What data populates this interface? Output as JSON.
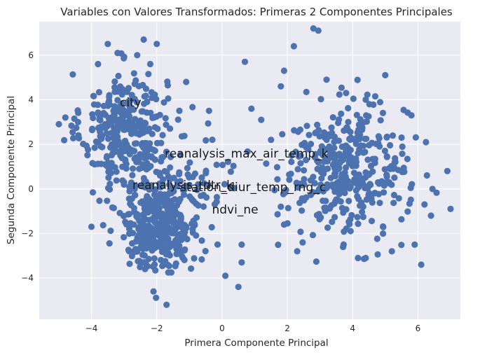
{
  "chart_data": {
    "type": "scatter",
    "title": "Variables con Valores Transformados: Primeras 2 Componentes Principales",
    "xlabel": "Primera Componente Principal",
    "ylabel": "Segunda Componente Principal",
    "xlim": [
      -5.6,
      7.3
    ],
    "ylim": [
      -5.85,
      7.5
    ],
    "xticks": [
      -4,
      -2,
      0,
      2,
      4,
      6
    ],
    "yticks": [
      -4,
      -2,
      0,
      2,
      4,
      6
    ],
    "grid": true,
    "point_color": "#4c72b0",
    "background_color": "#eaeaf2",
    "clusters": [
      {
        "center": [
          -3.0,
          2.7
        ],
        "spread": [
          0.65,
          1.25
        ],
        "count": 300
      },
      {
        "center": [
          -1.9,
          -1.6
        ],
        "spread": [
          0.6,
          1.0
        ],
        "count": 380
      },
      {
        "center": [
          -1.2,
          0.8
        ],
        "spread": [
          0.9,
          1.2
        ],
        "count": 90
      },
      {
        "center": [
          3.8,
          0.8
        ],
        "spread": [
          0.95,
          1.45
        ],
        "count": 380
      }
    ],
    "outlier_points": [
      [
        -3.5,
        6.5
      ],
      [
        -2.4,
        6.7
      ],
      [
        -2.0,
        6.5
      ],
      [
        -3.2,
        6.1
      ],
      [
        -2.6,
        6.0
      ],
      [
        -3.8,
        5.6
      ],
      [
        -2.2,
        5.6
      ],
      [
        -5.0,
        2.9
      ],
      [
        -4.8,
        3.2
      ],
      [
        -4.4,
        2.4
      ],
      [
        -3.9,
        1.1
      ],
      [
        -4.0,
        -1.7
      ],
      [
        -1.1,
        4.8
      ],
      [
        -0.4,
        3.5
      ],
      [
        -1.2,
        -3.1
      ],
      [
        -1.7,
        -5.2
      ],
      [
        -2.1,
        -4.6
      ],
      [
        0.5,
        -4.4
      ],
      [
        0.6,
        -3.3
      ],
      [
        0.6,
        -2.5
      ],
      [
        0.1,
        -3.9
      ],
      [
        0.7,
        5.7
      ],
      [
        0.9,
        3.6
      ],
      [
        1.2,
        3.1
      ],
      [
        1.5,
        2.2
      ],
      [
        2.2,
        6.4
      ],
      [
        2.8,
        7.2
      ],
      [
        2.95,
        7.1
      ],
      [
        3.2,
        4.9
      ],
      [
        1.9,
        5.3
      ],
      [
        1.8,
        4.6
      ],
      [
        5.0,
        5.1
      ],
      [
        5.8,
        3.3
      ],
      [
        6.1,
        -3.4
      ],
      [
        6.9,
        0.8
      ],
      [
        7.0,
        -0.9
      ],
      [
        5.9,
        -2.5
      ],
      [
        4.4,
        -3.1
      ],
      [
        5.2,
        -2.8
      ],
      [
        6.2,
        -0.7
      ],
      [
        6.4,
        -1.2
      ],
      [
        1.9,
        -1.6
      ],
      [
        2.3,
        -2.8
      ],
      [
        1.8,
        -0.8
      ],
      [
        3.8,
        4.3
      ],
      [
        4.4,
        4.0
      ],
      [
        5.5,
        2.3
      ]
    ],
    "annotations": [
      {
        "text": "city",
        "x": -2.8,
        "y": 3.7
      },
      {
        "text": "reanalysis_max_air_temp_k",
        "x": 0.75,
        "y": 1.4
      },
      {
        "text": "reanalysis_tdtr_k",
        "x": -1.2,
        "y": 0.0
      },
      {
        "text": "station_diur_temp_rng_c",
        "x": 0.95,
        "y": -0.1
      },
      {
        "text": "ndvi_ne",
        "x": 0.4,
        "y": -1.1
      }
    ]
  }
}
